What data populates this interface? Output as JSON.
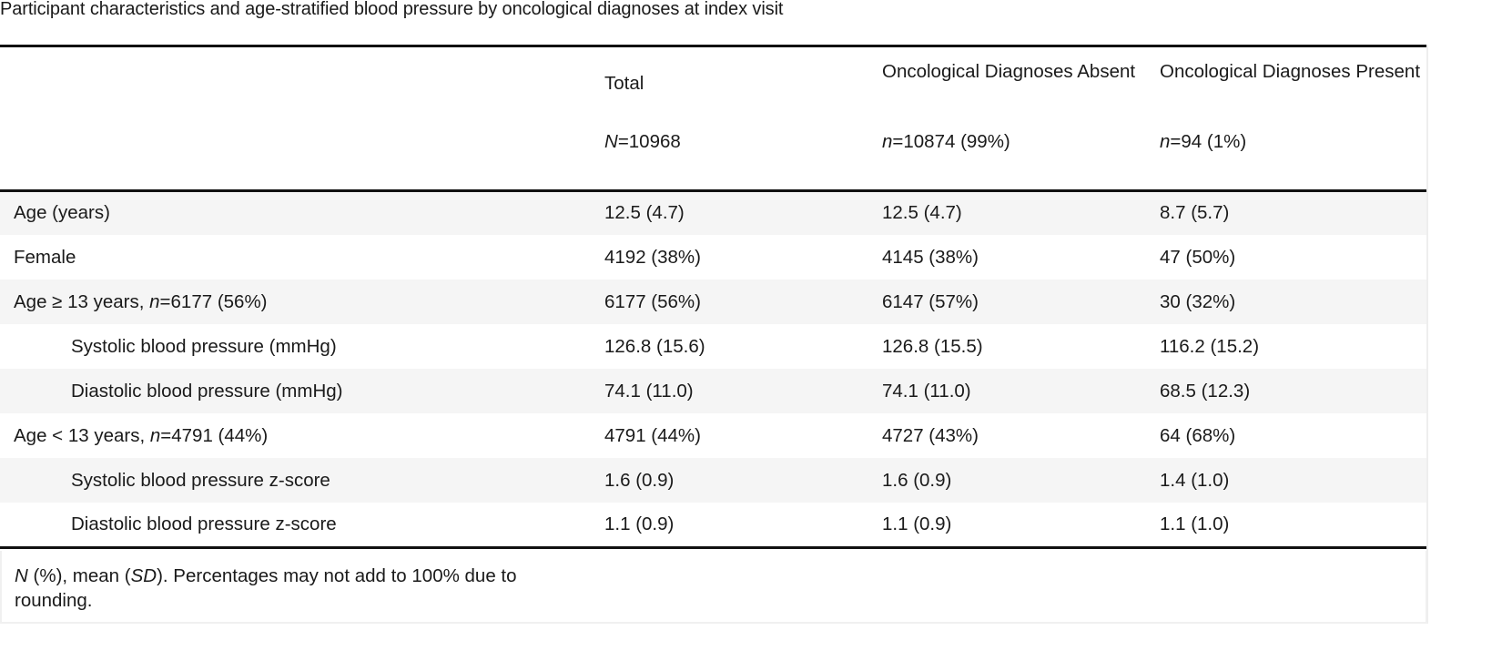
{
  "caption": "Participant characteristics and age-stratified blood pressure by oncological diagnoses at index visit",
  "columns": [
    {
      "title": "Total",
      "n_prefix": "N",
      "n_value": "=10968"
    },
    {
      "title": "Oncological Diagnoses Absent",
      "n_prefix": "n",
      "n_value": "=10874 (99%)"
    },
    {
      "title": "Oncological Diagnoses Present",
      "n_prefix": "n",
      "n_value": "=94 (1%)"
    }
  ],
  "rows": [
    {
      "label": "Age (years)",
      "label_italic": "",
      "label_suffix": "",
      "values": [
        "12.5 (4.7)",
        "12.5 (4.7)",
        "8.7 (5.7)"
      ]
    },
    {
      "label": "Female",
      "label_italic": "",
      "label_suffix": "",
      "values": [
        "4192 (38%)",
        "4145 (38%)",
        "47 (50%)"
      ]
    },
    {
      "label": "Age ≥ 13 years, ",
      "label_italic": "n",
      "label_suffix": "=6177 (56%)",
      "values": [
        "6177 (56%)",
        "6147 (57%)",
        "30 (32%)"
      ]
    },
    {
      "label": "Systolic blood pressure (mmHg)",
      "label_italic": "",
      "label_suffix": "",
      "values": [
        "126.8 (15.6)",
        "126.8 (15.5)",
        "116.2 (15.2)"
      ]
    },
    {
      "label": "Diastolic blood pressure (mmHg)",
      "label_italic": "",
      "label_suffix": "",
      "values": [
        "74.1 (11.0)",
        "74.1 (11.0)",
        "68.5 (12.3)"
      ]
    },
    {
      "label": "Age < 13 years, ",
      "label_italic": "n",
      "label_suffix": "=4791 (44%)",
      "values": [
        "4791 (44%)",
        "4727 (43%)",
        "64 (68%)"
      ]
    },
    {
      "label": "Systolic blood pressure z-score",
      "label_italic": "",
      "label_suffix": "",
      "values": [
        "1.6 (0.9)",
        "1.6 (0.9)",
        "1.4 (1.0)"
      ]
    },
    {
      "label": "Diastolic blood pressure z-score",
      "label_italic": "",
      "label_suffix": "",
      "values": [
        "1.1 (0.9)",
        "1.1 (0.9)",
        "1.1 (1.0)"
      ]
    }
  ],
  "footnote": {
    "part1_italic": "N",
    "part2": " (%), mean (",
    "part3_italic": "SD",
    "part4": "). Percentages may not add to 100% due to rounding."
  }
}
